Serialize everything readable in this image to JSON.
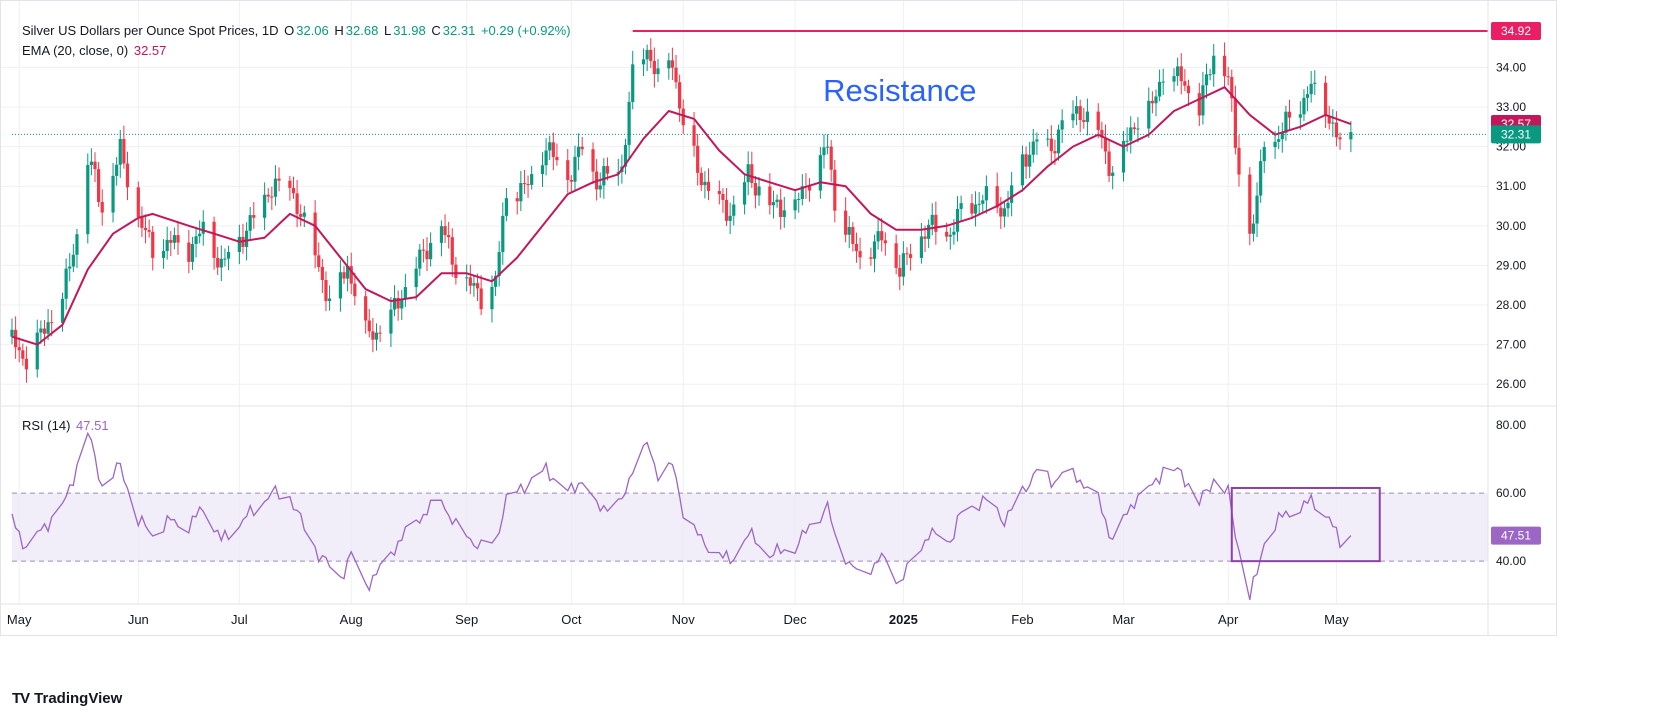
{
  "header": {
    "symbol_title": "Silver US Dollars per Ounce Spot Prices, 1D",
    "o_label": "O",
    "o_value": "32.06",
    "h_label": "H",
    "h_value": "32.68",
    "l_label": "L",
    "l_value": "31.98",
    "c_label": "C",
    "c_value": "32.31",
    "change": "+0.29 (+0.92%)",
    "ema_label": "EMA (20, close, 0)",
    "ema_value": "32.57",
    "rsi_label": "RSI (14)",
    "rsi_value": "47.51"
  },
  "brand": {
    "logo_text": "TV",
    "name": "TradingView"
  },
  "colors": {
    "up": "#089981",
    "down": "#f23645",
    "ema": "#c2185b",
    "rsi": "#9c66c5",
    "band": "#ede7f6",
    "resistance": "#e91e63",
    "annotation": "#2962ff",
    "grid": "#eef0f3",
    "text": "#131722"
  },
  "chart_data": [
    {
      "type": "candlestick",
      "title": "Silver US Dollars per Ounce Spot Prices, 1D",
      "ylim": [
        25.5,
        35.4
      ],
      "y_ticks": [
        26,
        27,
        28,
        29,
        30,
        31,
        32,
        33,
        34
      ],
      "x_start": "2024-04-29",
      "x_end": "2025-06-12",
      "x_ticks": [
        {
          "label": "May",
          "date": "2024-05-01",
          "bold": false
        },
        {
          "label": "Jun",
          "date": "2024-06-03",
          "bold": false
        },
        {
          "label": "Jul",
          "date": "2024-07-01",
          "bold": false
        },
        {
          "label": "Aug",
          "date": "2024-08-01",
          "bold": false
        },
        {
          "label": "Sep",
          "date": "2024-09-02",
          "bold": false
        },
        {
          "label": "Oct",
          "date": "2024-10-01",
          "bold": false
        },
        {
          "label": "Nov",
          "date": "2024-11-01",
          "bold": false
        },
        {
          "label": "Dec",
          "date": "2024-12-02",
          "bold": false
        },
        {
          "label": "2025",
          "date": "2025-01-01",
          "bold": true
        },
        {
          "label": "Feb",
          "date": "2025-02-03",
          "bold": false
        },
        {
          "label": "Mar",
          "date": "2025-03-03",
          "bold": false
        },
        {
          "label": "Apr",
          "date": "2025-04-01",
          "bold": false
        },
        {
          "label": "May",
          "date": "2025-05-01",
          "bold": false
        }
      ],
      "close_path": [
        [
          "2024-04-29",
          27.1
        ],
        [
          "2024-05-03",
          26.6
        ],
        [
          "2024-05-08",
          27.4
        ],
        [
          "2024-05-13",
          28.2
        ],
        [
          "2024-05-17",
          29.8
        ],
        [
          "2024-05-20",
          31.7
        ],
        [
          "2024-05-22",
          31.2
        ],
        [
          "2024-05-24",
          30.4
        ],
        [
          "2024-05-29",
          31.9
        ],
        [
          "2024-06-03",
          30.2
        ],
        [
          "2024-06-07",
          29.4
        ],
        [
          "2024-06-12",
          29.6
        ],
        [
          "2024-06-17",
          29.4
        ],
        [
          "2024-06-21",
          29.9
        ],
        [
          "2024-06-26",
          29.0
        ],
        [
          "2024-07-03",
          29.9
        ],
        [
          "2024-07-10",
          31.0
        ],
        [
          "2024-07-15",
          31.0
        ],
        [
          "2024-07-18",
          30.3
        ],
        [
          "2024-07-23",
          29.0
        ],
        [
          "2024-07-26",
          28.0
        ],
        [
          "2024-07-31",
          29.0
        ],
        [
          "2024-08-05",
          27.3
        ],
        [
          "2024-08-08",
          27.3
        ],
        [
          "2024-08-13",
          27.9
        ],
        [
          "2024-08-19",
          29.0
        ],
        [
          "2024-08-26",
          30.0
        ],
        [
          "2024-08-30",
          28.9
        ],
        [
          "2024-09-06",
          28.2
        ],
        [
          "2024-09-10",
          28.6
        ],
        [
          "2024-09-13",
          30.8
        ],
        [
          "2024-09-19",
          31.0
        ],
        [
          "2024-09-24",
          32.0
        ],
        [
          "2024-09-30",
          31.2
        ],
        [
          "2024-10-04",
          32.0
        ],
        [
          "2024-10-08",
          31.1
        ],
        [
          "2024-10-15",
          31.5
        ],
        [
          "2024-10-18",
          33.8
        ],
        [
          "2024-10-22",
          34.5
        ],
        [
          "2024-10-25",
          33.7
        ],
        [
          "2024-10-29",
          34.2
        ],
        [
          "2024-11-01",
          32.5
        ],
        [
          "2024-11-06",
          31.2
        ],
        [
          "2024-11-11",
          30.6
        ],
        [
          "2024-11-14",
          30.3
        ],
        [
          "2024-11-19",
          31.3
        ],
        [
          "2024-11-25",
          30.5
        ],
        [
          "2024-12-02",
          30.5
        ],
        [
          "2024-12-06",
          31.2
        ],
        [
          "2024-12-11",
          32.0
        ],
        [
          "2024-12-13",
          30.6
        ],
        [
          "2024-12-18",
          29.5
        ],
        [
          "2024-12-20",
          29.2
        ],
        [
          "2024-12-26",
          29.7
        ],
        [
          "2024-12-31",
          28.9
        ],
        [
          "2025-01-08",
          30.0
        ],
        [
          "2025-01-14",
          29.8
        ],
        [
          "2025-01-17",
          30.4
        ],
        [
          "2025-01-24",
          30.7
        ],
        [
          "2025-01-29",
          30.4
        ],
        [
          "2025-02-03",
          31.6
        ],
        [
          "2025-02-07",
          32.2
        ],
        [
          "2025-02-11",
          31.9
        ],
        [
          "2025-02-14",
          32.6
        ],
        [
          "2025-02-19",
          32.9
        ],
        [
          "2025-02-24",
          32.4
        ],
        [
          "2025-02-28",
          31.3
        ],
        [
          "2025-03-06",
          32.6
        ],
        [
          "2025-03-11",
          33.0
        ],
        [
          "2025-03-14",
          33.9
        ],
        [
          "2025-03-19",
          33.7
        ],
        [
          "2025-03-24",
          33.0
        ],
        [
          "2025-03-28",
          34.3
        ],
        [
          "2025-04-01",
          33.8
        ],
        [
          "2025-04-03",
          32.0
        ],
        [
          "2025-04-07",
          29.8
        ],
        [
          "2025-04-09",
          30.6
        ],
        [
          "2025-04-11",
          32.2
        ],
        [
          "2025-04-15",
          32.2
        ],
        [
          "2025-04-17",
          32.6
        ],
        [
          "2025-04-22",
          33.2
        ],
        [
          "2025-04-24",
          33.5
        ],
        [
          "2025-04-28",
          33.0
        ],
        [
          "2025-05-02",
          32.0
        ],
        [
          "2025-05-05",
          32.31
        ]
      ],
      "ema_path": [
        [
          "2024-04-29",
          27.2
        ],
        [
          "2024-05-06",
          27.0
        ],
        [
          "2024-05-13",
          27.5
        ],
        [
          "2024-05-20",
          28.9
        ],
        [
          "2024-05-27",
          29.8
        ],
        [
          "2024-06-03",
          30.2
        ],
        [
          "2024-06-07",
          30.3
        ],
        [
          "2024-06-17",
          30.0
        ],
        [
          "2024-06-24",
          29.8
        ],
        [
          "2024-07-01",
          29.6
        ],
        [
          "2024-07-08",
          29.7
        ],
        [
          "2024-07-15",
          30.3
        ],
        [
          "2024-07-22",
          30.0
        ],
        [
          "2024-07-29",
          29.2
        ],
        [
          "2024-08-05",
          28.4
        ],
        [
          "2024-08-12",
          28.1
        ],
        [
          "2024-08-19",
          28.2
        ],
        [
          "2024-08-26",
          28.8
        ],
        [
          "2024-09-02",
          28.8
        ],
        [
          "2024-09-09",
          28.6
        ],
        [
          "2024-09-16",
          29.2
        ],
        [
          "2024-09-23",
          30.0
        ],
        [
          "2024-09-30",
          30.8
        ],
        [
          "2024-10-07",
          31.1
        ],
        [
          "2024-10-14",
          31.3
        ],
        [
          "2024-10-21",
          32.2
        ],
        [
          "2024-10-28",
          32.9
        ],
        [
          "2024-11-04",
          32.7
        ],
        [
          "2024-11-11",
          31.9
        ],
        [
          "2024-11-18",
          31.3
        ],
        [
          "2024-11-25",
          31.1
        ],
        [
          "2024-12-02",
          30.9
        ],
        [
          "2024-12-09",
          31.1
        ],
        [
          "2024-12-16",
          31.0
        ],
        [
          "2024-12-23",
          30.3
        ],
        [
          "2024-12-30",
          29.9
        ],
        [
          "2025-01-06",
          29.9
        ],
        [
          "2025-01-13",
          30.0
        ],
        [
          "2025-01-20",
          30.2
        ],
        [
          "2025-01-27",
          30.5
        ],
        [
          "2025-02-03",
          30.9
        ],
        [
          "2025-02-10",
          31.5
        ],
        [
          "2025-02-17",
          32.0
        ],
        [
          "2025-02-24",
          32.3
        ],
        [
          "2025-03-03",
          32.0
        ],
        [
          "2025-03-10",
          32.3
        ],
        [
          "2025-03-17",
          32.9
        ],
        [
          "2025-03-24",
          33.2
        ],
        [
          "2025-03-31",
          33.5
        ],
        [
          "2025-04-07",
          32.8
        ],
        [
          "2025-04-14",
          32.3
        ],
        [
          "2025-04-21",
          32.5
        ],
        [
          "2025-04-28",
          32.8
        ],
        [
          "2025-05-05",
          32.57
        ]
      ],
      "resistance": {
        "value": 34.92,
        "from": "2024-10-18",
        "label": "Resistance"
      },
      "price_labels": [
        {
          "value": 34.92,
          "text": "34.92",
          "role": "resistance"
        },
        {
          "value": 32.57,
          "text": "32.57",
          "role": "ema"
        },
        {
          "value": 32.31,
          "text": "32.31",
          "role": "close"
        }
      ],
      "last_close": 32.31
    },
    {
      "type": "line",
      "title": "RSI (14)",
      "ylim": [
        28,
        85
      ],
      "y_ticks": [
        40,
        60,
        80
      ],
      "band": [
        40,
        60
      ],
      "values": [
        [
          "2024-04-29",
          52
        ],
        [
          "2024-05-03",
          44
        ],
        [
          "2024-05-08",
          50
        ],
        [
          "2024-05-14",
          58
        ],
        [
          "2024-05-17",
          68
        ],
        [
          "2024-05-20",
          78
        ],
        [
          "2024-05-22",
          70
        ],
        [
          "2024-05-24",
          62
        ],
        [
          "2024-05-29",
          68
        ],
        [
          "2024-06-03",
          52
        ],
        [
          "2024-06-07",
          48
        ],
        [
          "2024-06-12",
          52
        ],
        [
          "2024-06-17",
          50
        ],
        [
          "2024-06-21",
          56
        ],
        [
          "2024-06-26",
          46
        ],
        [
          "2024-07-03",
          53
        ],
        [
          "2024-07-10",
          60
        ],
        [
          "2024-07-15",
          59
        ],
        [
          "2024-07-18",
          52
        ],
        [
          "2024-07-23",
          42
        ],
        [
          "2024-07-29",
          35
        ],
        [
          "2024-08-01",
          42
        ],
        [
          "2024-08-05",
          33
        ],
        [
          "2024-08-08",
          36
        ],
        [
          "2024-08-13",
          44
        ],
        [
          "2024-08-19",
          52
        ],
        [
          "2024-08-26",
          58
        ],
        [
          "2024-08-30",
          50
        ],
        [
          "2024-09-06",
          44
        ],
        [
          "2024-09-10",
          46
        ],
        [
          "2024-09-13",
          58
        ],
        [
          "2024-09-18",
          62
        ],
        [
          "2024-09-24",
          67
        ],
        [
          "2024-09-30",
          60
        ],
        [
          "2024-10-04",
          64
        ],
        [
          "2024-10-08",
          56
        ],
        [
          "2024-10-15",
          57
        ],
        [
          "2024-10-18",
          68
        ],
        [
          "2024-10-22",
          74
        ],
        [
          "2024-10-25",
          66
        ],
        [
          "2024-10-29",
          68
        ],
        [
          "2024-11-01",
          55
        ],
        [
          "2024-11-06",
          46
        ],
        [
          "2024-11-11",
          42
        ],
        [
          "2024-11-14",
          40
        ],
        [
          "2024-11-19",
          48
        ],
        [
          "2024-11-25",
          42
        ],
        [
          "2024-12-02",
          44
        ],
        [
          "2024-12-06",
          50
        ],
        [
          "2024-12-11",
          56
        ],
        [
          "2024-12-13",
          47
        ],
        [
          "2024-12-18",
          38
        ],
        [
          "2024-12-20",
          36
        ],
        [
          "2024-12-26",
          41
        ],
        [
          "2024-12-31",
          34
        ],
        [
          "2025-01-08",
          48
        ],
        [
          "2025-01-14",
          46
        ],
        [
          "2025-01-17",
          54
        ],
        [
          "2025-01-24",
          58
        ],
        [
          "2025-01-29",
          52
        ],
        [
          "2025-02-03",
          60
        ],
        [
          "2025-02-07",
          67
        ],
        [
          "2025-02-11",
          63
        ],
        [
          "2025-02-14",
          66
        ],
        [
          "2025-02-19",
          64
        ],
        [
          "2025-02-24",
          58
        ],
        [
          "2025-02-28",
          46
        ],
        [
          "2025-03-06",
          58
        ],
        [
          "2025-03-11",
          62
        ],
        [
          "2025-03-14",
          67
        ],
        [
          "2025-03-19",
          66
        ],
        [
          "2025-03-24",
          57
        ],
        [
          "2025-03-28",
          64
        ],
        [
          "2025-04-01",
          60
        ],
        [
          "2025-04-03",
          48
        ],
        [
          "2025-04-07",
          30
        ],
        [
          "2025-04-09",
          36
        ],
        [
          "2025-04-11",
          46
        ],
        [
          "2025-04-15",
          52
        ],
        [
          "2025-04-17",
          54
        ],
        [
          "2025-04-22",
          56
        ],
        [
          "2025-04-24",
          58
        ],
        [
          "2025-04-28",
          54
        ],
        [
          "2025-05-02",
          46
        ],
        [
          "2025-05-05",
          47.51
        ]
      ],
      "highlight_box": {
        "from": "2025-04-02",
        "to": "2025-05-13",
        "low": 40,
        "high": 61.5
      },
      "last_value": 47.51
    }
  ]
}
